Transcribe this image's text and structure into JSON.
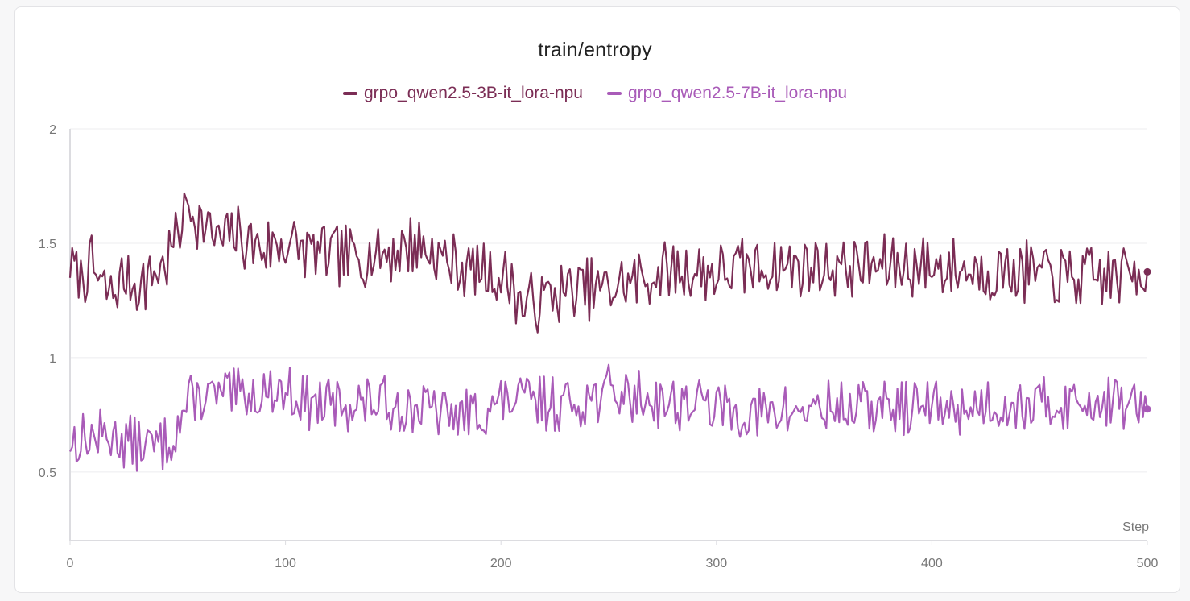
{
  "chart_data": {
    "type": "line",
    "title": "train/entropy",
    "xlabel": "Step",
    "ylabel": "",
    "xlim": [
      0,
      500
    ],
    "ylim": [
      0.2,
      2.0
    ],
    "x_ticks": [
      "0",
      "100",
      "200",
      "300",
      "400",
      "500"
    ],
    "y_ticks": [
      "0.5",
      "1",
      "1.5",
      "2"
    ],
    "grid": true,
    "legend_position": "top-center",
    "series": [
      {
        "name": "grpo_qwen2.5-3B-it_lora-npu",
        "color": "#7b2d55",
        "anchors": [
          [
            0,
            1.4
          ],
          [
            5,
            1.35
          ],
          [
            10,
            1.4
          ],
          [
            15,
            1.3
          ],
          [
            20,
            1.28
          ],
          [
            25,
            1.35
          ],
          [
            30,
            1.32
          ],
          [
            35,
            1.33
          ],
          [
            40,
            1.38
          ],
          [
            45,
            1.42
          ],
          [
            50,
            1.55
          ],
          [
            55,
            1.68
          ],
          [
            60,
            1.6
          ],
          [
            65,
            1.55
          ],
          [
            70,
            1.5
          ],
          [
            75,
            1.55
          ],
          [
            80,
            1.52
          ],
          [
            90,
            1.48
          ],
          [
            100,
            1.5
          ],
          [
            110,
            1.47
          ],
          [
            120,
            1.45
          ],
          [
            130,
            1.44
          ],
          [
            140,
            1.45
          ],
          [
            150,
            1.46
          ],
          [
            160,
            1.5
          ],
          [
            170,
            1.45
          ],
          [
            180,
            1.4
          ],
          [
            190,
            1.38
          ],
          [
            200,
            1.35
          ],
          [
            205,
            1.33
          ],
          [
            210,
            1.22
          ],
          [
            215,
            1.24
          ],
          [
            225,
            1.28
          ],
          [
            240,
            1.3
          ],
          [
            250,
            1.3
          ],
          [
            260,
            1.33
          ],
          [
            280,
            1.38
          ],
          [
            300,
            1.37
          ],
          [
            320,
            1.4
          ],
          [
            340,
            1.4
          ],
          [
            360,
            1.4
          ],
          [
            380,
            1.4
          ],
          [
            400,
            1.4
          ],
          [
            420,
            1.38
          ],
          [
            440,
            1.38
          ],
          [
            460,
            1.35
          ],
          [
            480,
            1.35
          ],
          [
            495,
            1.38
          ],
          [
            500,
            1.38
          ]
        ],
        "noise": 0.07,
        "seed": 7,
        "last_point": [
          500,
          1.375
        ]
      },
      {
        "name": "grpo_qwen2.5-7B-it_lora-npu",
        "color": "#a95bb8",
        "anchors": [
          [
            0,
            0.63
          ],
          [
            10,
            0.65
          ],
          [
            20,
            0.66
          ],
          [
            30,
            0.62
          ],
          [
            40,
            0.61
          ],
          [
            45,
            0.63
          ],
          [
            50,
            0.7
          ],
          [
            55,
            0.8
          ],
          [
            60,
            0.83
          ],
          [
            70,
            0.83
          ],
          [
            80,
            0.83
          ],
          [
            90,
            0.85
          ],
          [
            100,
            0.86
          ],
          [
            110,
            0.8
          ],
          [
            120,
            0.79
          ],
          [
            130,
            0.8
          ],
          [
            140,
            0.8
          ],
          [
            150,
            0.8
          ],
          [
            160,
            0.78
          ],
          [
            170,
            0.77
          ],
          [
            180,
            0.74
          ],
          [
            190,
            0.76
          ],
          [
            200,
            0.8
          ],
          [
            210,
            0.82
          ],
          [
            220,
            0.8
          ],
          [
            230,
            0.8
          ],
          [
            240,
            0.82
          ],
          [
            250,
            0.85
          ],
          [
            260,
            0.83
          ],
          [
            270,
            0.82
          ],
          [
            280,
            0.8
          ],
          [
            290,
            0.8
          ],
          [
            300,
            0.78
          ],
          [
            310,
            0.76
          ],
          [
            320,
            0.75
          ],
          [
            330,
            0.76
          ],
          [
            340,
            0.77
          ],
          [
            350,
            0.78
          ],
          [
            360,
            0.78
          ],
          [
            370,
            0.78
          ],
          [
            380,
            0.78
          ],
          [
            390,
            0.78
          ],
          [
            400,
            0.79
          ],
          [
            410,
            0.78
          ],
          [
            420,
            0.79
          ],
          [
            430,
            0.8
          ],
          [
            440,
            0.8
          ],
          [
            450,
            0.79
          ],
          [
            460,
            0.8
          ],
          [
            470,
            0.8
          ],
          [
            480,
            0.82
          ],
          [
            490,
            0.8
          ],
          [
            500,
            0.78
          ]
        ],
        "noise": 0.06,
        "seed": 13,
        "last_point": [
          500,
          0.775
        ]
      }
    ]
  }
}
